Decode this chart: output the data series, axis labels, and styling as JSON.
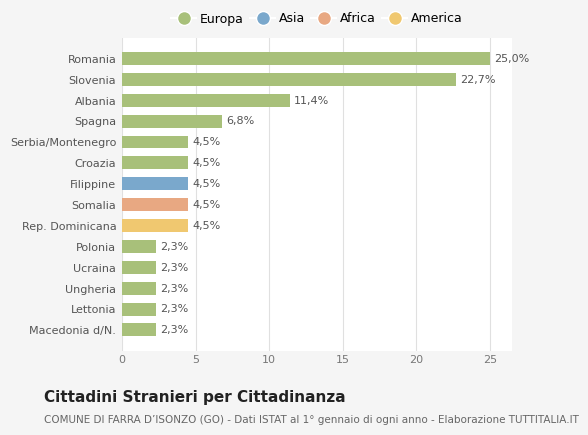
{
  "categories": [
    "Macedonia d/N.",
    "Lettonia",
    "Ungheria",
    "Ucraina",
    "Polonia",
    "Rep. Dominicana",
    "Somalia",
    "Filippine",
    "Croazia",
    "Serbia/Montenegro",
    "Spagna",
    "Albania",
    "Slovenia",
    "Romania"
  ],
  "values": [
    2.3,
    2.3,
    2.3,
    2.3,
    2.3,
    4.5,
    4.5,
    4.5,
    4.5,
    4.5,
    6.8,
    11.4,
    22.7,
    25.0
  ],
  "colors": [
    "#a8c07a",
    "#a8c07a",
    "#a8c07a",
    "#a8c07a",
    "#a8c07a",
    "#f0c870",
    "#e8a882",
    "#7aa8cc",
    "#a8c07a",
    "#a8c07a",
    "#a8c07a",
    "#a8c07a",
    "#a8c07a",
    "#a8c07a"
  ],
  "labels": [
    "2,3%",
    "2,3%",
    "2,3%",
    "2,3%",
    "2,3%",
    "4,5%",
    "4,5%",
    "4,5%",
    "4,5%",
    "4,5%",
    "6,8%",
    "11,4%",
    "22,7%",
    "25,0%"
  ],
  "legend_names": [
    "Europa",
    "Asia",
    "Africa",
    "America"
  ],
  "legend_colors": [
    "#a8c07a",
    "#7aa8cc",
    "#e8a882",
    "#f0c870"
  ],
  "title": "Cittadini Stranieri per Cittadinanza",
  "subtitle": "COMUNE DI FARRA D’ISONZO (GO) - Dati ISTAT al 1° gennaio di ogni anno - Elaborazione TUTTITALIA.IT",
  "xlim": [
    0,
    26.5
  ],
  "xticks": [
    0,
    5,
    10,
    15,
    20,
    25
  ],
  "background_color": "#f5f5f5",
  "plot_background": "#ffffff",
  "grid_color": "#e0e0e0",
  "bar_height": 0.62,
  "title_fontsize": 11,
  "subtitle_fontsize": 7.5,
  "label_fontsize": 8,
  "tick_fontsize": 8,
  "legend_fontsize": 9
}
